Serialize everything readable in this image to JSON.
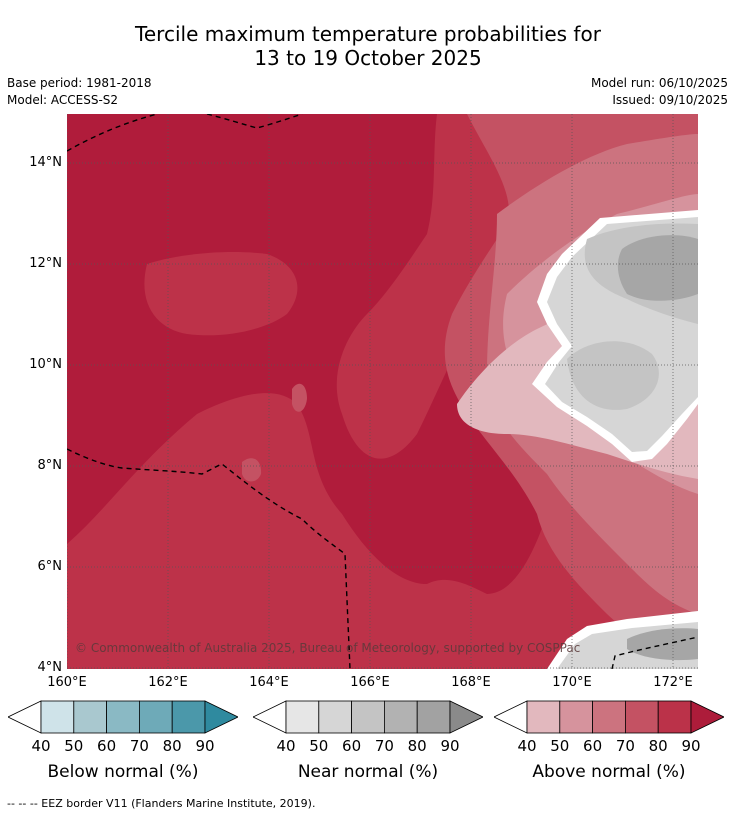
{
  "title_line1": "Tercile maximum temperature probabilities for",
  "title_line2": "13 to 19 October 2025",
  "base_period": "Base period: 1981-2018",
  "model": "Model: ACCESS-S2",
  "model_run": "Model run: 06/10/2025",
  "issued": "Issued: 09/10/2025",
  "lat_labels": [
    "14°N",
    "12°N",
    "10°N",
    "8°N",
    "6°N",
    "4°N"
  ],
  "lon_labels": [
    "160°E",
    "162°E",
    "164°E",
    "166°E",
    "168°E",
    "170°E",
    "172°E"
  ],
  "copyright": "© Commonwealth of Australia 2025, Bureau of Meteorology, supported by COSPPac",
  "legends": [
    {
      "caption": "Below normal (%)",
      "ticks": [
        "40",
        "50",
        "60",
        "70",
        "80",
        "90"
      ],
      "colors": [
        "#cfe3e9",
        "#a9c8cf",
        "#8ab9c4",
        "#6eaab8",
        "#4b98aa",
        "#2f8a9f"
      ]
    },
    {
      "caption": "Near normal (%)",
      "ticks": [
        "40",
        "50",
        "60",
        "70",
        "80",
        "90"
      ],
      "colors": [
        "#e6e6e6",
        "#d6d6d6",
        "#c4c4c4",
        "#b2b2b2",
        "#a2a2a2",
        "#8a8a8a"
      ]
    },
    {
      "caption": "Above normal (%)",
      "ticks": [
        "40",
        "50",
        "60",
        "70",
        "80",
        "90"
      ],
      "colors": [
        "#e2b8be",
        "#d6939d",
        "#cc737f",
        "#c45263",
        "#bb3249",
        "#ad1c3a"
      ]
    }
  ],
  "footer": "-- -- -- EEZ border V11 (Flanders Marine Institute, 2019)."
}
